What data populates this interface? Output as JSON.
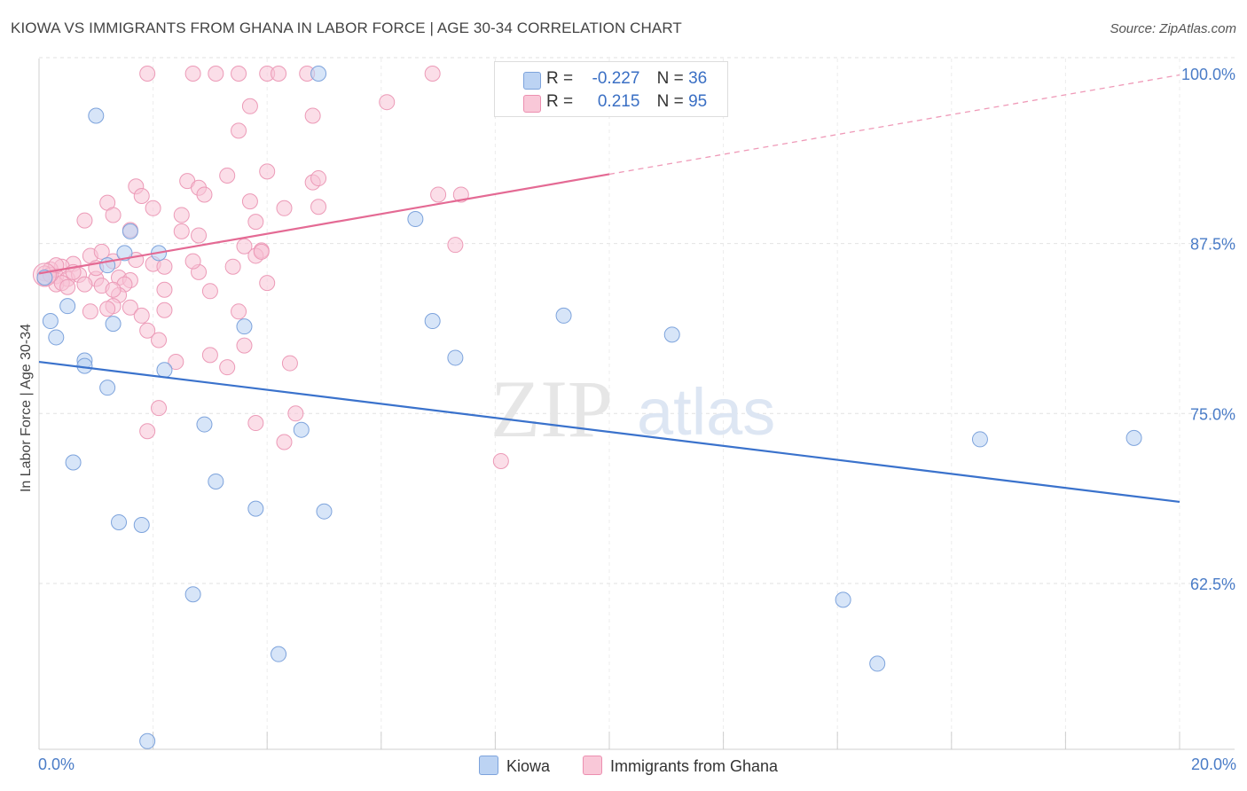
{
  "title": "KIOWA VS IMMIGRANTS FROM GHANA IN LABOR FORCE | AGE 30-34 CORRELATION CHART",
  "source": "Source: ZipAtlas.com",
  "watermark": {
    "zip": "ZIP",
    "atlas": "atlas"
  },
  "legend": {
    "row1": {
      "r_label": "R =",
      "r_value": "-0.227",
      "n_label": "N =",
      "n_value": "36"
    },
    "row2": {
      "r_label": "R =",
      "r_value": "0.215",
      "n_label": "N =",
      "n_value": "95"
    }
  },
  "colors": {
    "kiowa": "#a8c4ec",
    "kiowa_line": "#3a72cc",
    "ghana": "#f5b6cb",
    "ghana_line": "#e46a94",
    "tick_label": "#4a7cc7"
  },
  "chart_data": {
    "type": "scatter",
    "xlabel": "",
    "ylabel": "In Labor Force | Age 30-34",
    "x_tick_labels": {
      "min": "0.0%",
      "max": "20.0%"
    },
    "y_tick_labels": [
      "100.0%",
      "87.5%",
      "75.0%",
      "62.5%"
    ],
    "y_ticks": [
      100.0,
      87.5,
      75.0,
      62.5
    ],
    "xlim": [
      0,
      20
    ],
    "ylim": [
      50.3,
      101.5
    ],
    "grid": true,
    "legend_position": "top-center",
    "series": [
      {
        "name": "Kiowa",
        "color": "#a8c4ec",
        "trend": {
          "x": [
            0,
            20
          ],
          "y": [
            78.8,
            68.5
          ]
        },
        "points": [
          [
            1.0,
            96.9
          ],
          [
            4.9,
            100.0
          ],
          [
            1.6,
            88.4
          ],
          [
            2.1,
            86.8
          ],
          [
            1.5,
            86.8
          ],
          [
            1.2,
            85.9
          ],
          [
            0.5,
            82.9
          ],
          [
            0.2,
            81.8
          ],
          [
            0.3,
            80.6
          ],
          [
            1.3,
            81.6
          ],
          [
            3.6,
            81.4
          ],
          [
            6.6,
            89.3
          ],
          [
            6.9,
            81.8
          ],
          [
            7.3,
            79.1
          ],
          [
            9.2,
            82.2
          ],
          [
            11.1,
            80.8
          ],
          [
            0.8,
            78.9
          ],
          [
            0.8,
            78.5
          ],
          [
            2.2,
            78.2
          ],
          [
            1.2,
            76.9
          ],
          [
            2.9,
            74.2
          ],
          [
            4.6,
            73.8
          ],
          [
            0.6,
            71.4
          ],
          [
            3.1,
            70.0
          ],
          [
            3.8,
            68.0
          ],
          [
            5.0,
            67.8
          ],
          [
            1.4,
            67.0
          ],
          [
            1.8,
            66.8
          ],
          [
            16.5,
            73.1
          ],
          [
            19.2,
            73.2
          ],
          [
            2.7,
            61.7
          ],
          [
            14.1,
            61.3
          ],
          [
            4.2,
            57.3
          ],
          [
            14.7,
            56.6
          ],
          [
            1.9,
            50.9
          ],
          [
            0.1,
            85.0
          ]
        ]
      },
      {
        "name": "Immigrants from Ghana",
        "color": "#f5b6cb",
        "trend": {
          "x": [
            0,
            10
          ],
          "y": [
            85.3,
            92.6
          ]
        },
        "trend_dashed": {
          "x": [
            10,
            20
          ],
          "y": [
            92.6,
            99.9
          ]
        },
        "points": [
          [
            1.9,
            100.0
          ],
          [
            2.7,
            100.0
          ],
          [
            3.1,
            100.0
          ],
          [
            3.5,
            100.0
          ],
          [
            4.0,
            100.0
          ],
          [
            4.2,
            100.0
          ],
          [
            4.7,
            100.0
          ],
          [
            6.9,
            100.0
          ],
          [
            3.7,
            97.6
          ],
          [
            6.1,
            97.9
          ],
          [
            4.8,
            96.9
          ],
          [
            3.5,
            95.8
          ],
          [
            4.0,
            92.8
          ],
          [
            3.3,
            92.5
          ],
          [
            2.6,
            92.1
          ],
          [
            2.8,
            91.6
          ],
          [
            4.8,
            92.0
          ],
          [
            4.9,
            92.3
          ],
          [
            1.7,
            91.7
          ],
          [
            2.9,
            91.1
          ],
          [
            1.8,
            91.0
          ],
          [
            1.2,
            90.5
          ],
          [
            7.0,
            91.1
          ],
          [
            7.4,
            91.1
          ],
          [
            3.7,
            90.6
          ],
          [
            2.0,
            90.1
          ],
          [
            4.3,
            90.1
          ],
          [
            4.9,
            90.2
          ],
          [
            2.5,
            89.6
          ],
          [
            1.3,
            89.6
          ],
          [
            0.8,
            89.2
          ],
          [
            1.6,
            88.5
          ],
          [
            2.5,
            88.4
          ],
          [
            3.6,
            87.3
          ],
          [
            3.9,
            87.0
          ],
          [
            3.8,
            86.6
          ],
          [
            7.3,
            87.4
          ],
          [
            1.3,
            86.2
          ],
          [
            0.9,
            86.6
          ],
          [
            2.0,
            86.0
          ],
          [
            2.2,
            85.8
          ],
          [
            3.4,
            85.8
          ],
          [
            0.6,
            86.0
          ],
          [
            0.4,
            85.8
          ],
          [
            0.2,
            85.6
          ],
          [
            0.1,
            85.3
          ],
          [
            0.3,
            85.1
          ],
          [
            0.5,
            84.9
          ],
          [
            0.7,
            85.2
          ],
          [
            1.0,
            84.9
          ],
          [
            1.4,
            85.0
          ],
          [
            1.6,
            84.8
          ],
          [
            2.8,
            85.4
          ],
          [
            0.3,
            84.5
          ],
          [
            0.4,
            84.6
          ],
          [
            0.8,
            84.5
          ],
          [
            1.1,
            84.4
          ],
          [
            1.5,
            84.5
          ],
          [
            2.2,
            84.1
          ],
          [
            3.0,
            84.0
          ],
          [
            4.0,
            84.6
          ],
          [
            1.4,
            83.7
          ],
          [
            1.3,
            82.9
          ],
          [
            1.2,
            82.7
          ],
          [
            0.9,
            82.5
          ],
          [
            1.6,
            82.8
          ],
          [
            1.8,
            82.2
          ],
          [
            2.2,
            82.6
          ],
          [
            3.5,
            82.5
          ],
          [
            1.9,
            81.1
          ],
          [
            2.1,
            80.4
          ],
          [
            3.6,
            80.0
          ],
          [
            3.0,
            79.3
          ],
          [
            2.4,
            78.8
          ],
          [
            3.3,
            78.4
          ],
          [
            4.4,
            78.7
          ],
          [
            2.1,
            75.4
          ],
          [
            4.5,
            75.0
          ],
          [
            3.8,
            74.3
          ],
          [
            1.9,
            73.7
          ],
          [
            4.3,
            72.9
          ],
          [
            8.1,
            71.5
          ],
          [
            0.1,
            84.9
          ],
          [
            0.2,
            85.2
          ],
          [
            1.0,
            85.7
          ],
          [
            1.7,
            86.3
          ],
          [
            3.9,
            86.9
          ],
          [
            0.6,
            85.4
          ],
          [
            0.5,
            84.3
          ],
          [
            2.8,
            88.1
          ],
          [
            1.1,
            86.9
          ],
          [
            3.8,
            89.1
          ],
          [
            2.7,
            86.2
          ],
          [
            0.3,
            85.9
          ],
          [
            1.3,
            84.1
          ]
        ]
      }
    ]
  },
  "bottom_legend": {
    "kiowa": "Kiowa",
    "ghana": "Immigrants from Ghana"
  }
}
